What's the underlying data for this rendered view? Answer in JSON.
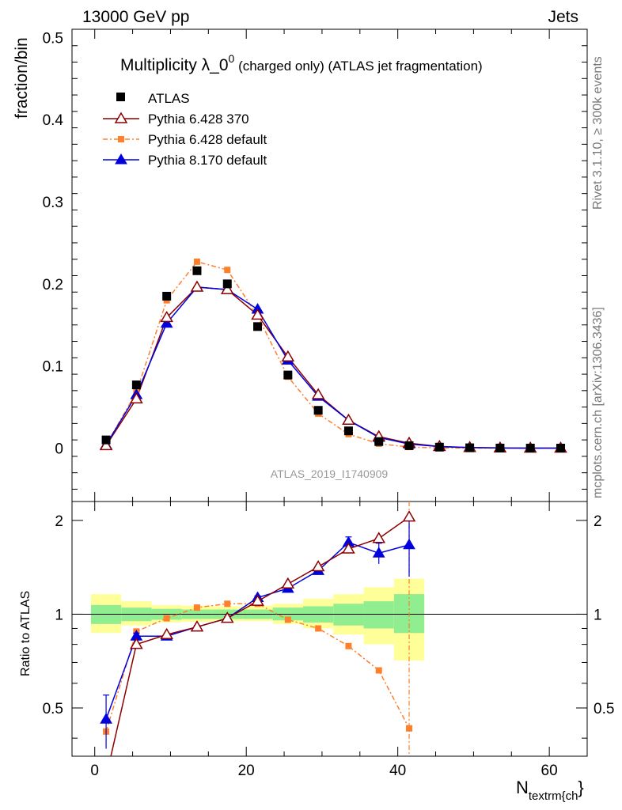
{
  "header": {
    "left": "13000 GeV pp",
    "right": "Jets"
  },
  "side": {
    "top": "Rivet 3.1.10, ≥ 300k events",
    "bottom": "mcplots.cern.ch [arXiv:1306.3436]"
  },
  "watermark": "ATLAS_2019_I1740909",
  "title": {
    "main": "Multiplicity λ_0",
    "sup": "0",
    "rest": " (charged only) (ATLAS jet fragmentation)"
  },
  "colors": {
    "atlas": "#000000",
    "p6_370": "#8b0000",
    "p6_default": "#ff7f2a",
    "p8": "#0000dd",
    "band_inner": "#90ee90",
    "band_outer": "#ffff99"
  },
  "chart_data": {
    "type": "scatter",
    "xlabel_main": "N",
    "xlabel_sub": "textrm{ch",
    "xlabel_end": "}",
    "ylabel": "fraction/bin",
    "ratio_ylabel": "Ratio to ATLAS",
    "xlim": [
      -3,
      65
    ],
    "ylim": [
      -0.065,
      0.51
    ],
    "ratio_ylim": [
      0.35,
      2.3
    ],
    "ratio_log": true,
    "x_ticks": [
      "0",
      "20",
      "40",
      "60"
    ],
    "y_ticks": [
      "0",
      "0.1",
      "0.2",
      "0.3",
      "0.4",
      "0.5"
    ],
    "ratio_ticks": [
      "0.5",
      "1",
      "2"
    ],
    "x": [
      1.5,
      5.5,
      9.5,
      13.5,
      17.5,
      21.5,
      25.5,
      29.5,
      33.5,
      37.5,
      41.5,
      45.5,
      49.5,
      53.5,
      57.5,
      61.5
    ],
    "series": [
      {
        "name": "ATLAS",
        "marker": "square",
        "values": [
          0.01,
          0.077,
          0.185,
          0.216,
          0.2,
          0.148,
          0.089,
          0.046,
          0.021,
          0.008,
          0.003,
          0.0012,
          0.0004,
          0.0001,
          3e-05,
          1e-05
        ]
      },
      {
        "name": "Pythia 6.428 370",
        "marker": "open-triangle",
        "values": [
          0.003,
          0.06,
          0.159,
          0.196,
          0.193,
          0.162,
          0.111,
          0.065,
          0.034,
          0.014,
          0.006,
          0.002,
          0.0007,
          0.0002,
          5e-05,
          1e-05
        ],
        "ratio": [
          0.3,
          0.8,
          0.86,
          0.91,
          0.97,
          1.1,
          1.25,
          1.42,
          1.62,
          1.75,
          2.05
        ]
      },
      {
        "name": "Pythia 6.428 default",
        "marker": "small-square",
        "values": [
          0.004,
          0.068,
          0.18,
          0.227,
          0.217,
          0.161,
          0.087,
          0.042,
          0.017,
          0.0053,
          0.0013,
          0.0003,
          0.0001,
          3e-05,
          1e-05,
          0.0
        ],
        "ratio": [
          0.42,
          0.88,
          0.97,
          1.05,
          1.08,
          1.08,
          0.96,
          0.9,
          0.79,
          0.66,
          0.43
        ]
      },
      {
        "name": "Pythia 8.170 default",
        "marker": "filled-triangle",
        "values": [
          0.004,
          0.065,
          0.152,
          0.196,
          0.193,
          0.169,
          0.107,
          0.063,
          0.034,
          0.013,
          0.005,
          0.0018,
          0.0006,
          0.0002,
          5e-05,
          1e-05
        ],
        "ratio": [
          0.46,
          0.85,
          0.85,
          0.91,
          0.97,
          1.13,
          1.21,
          1.38,
          1.7,
          1.57,
          1.67
        ],
        "ratio_err": [
          0.09,
          0.02,
          0.015,
          0.01,
          0.01,
          0.015,
          0.025,
          0.04,
          0.07,
          0.12,
          0.35
        ]
      }
    ],
    "bands": {
      "x_edges": [
        -0.5,
        3.5,
        7.5,
        11.5,
        15.5,
        19.5,
        23.5,
        27.5,
        31.5,
        35.5,
        39.5,
        43.5
      ],
      "inner_lo": [
        0.93,
        0.95,
        0.96,
        0.965,
        0.965,
        0.965,
        0.955,
        0.94,
        0.92,
        0.9,
        0.87
      ],
      "inner_hi": [
        1.07,
        1.05,
        1.04,
        1.035,
        1.035,
        1.035,
        1.05,
        1.06,
        1.08,
        1.1,
        1.16
      ],
      "outer_lo": [
        0.87,
        0.92,
        0.94,
        0.945,
        0.95,
        0.95,
        0.93,
        0.9,
        0.86,
        0.8,
        0.71
      ],
      "outer_hi": [
        1.16,
        1.1,
        1.07,
        1.065,
        1.06,
        1.065,
        1.08,
        1.12,
        1.16,
        1.22,
        1.3
      ]
    }
  }
}
